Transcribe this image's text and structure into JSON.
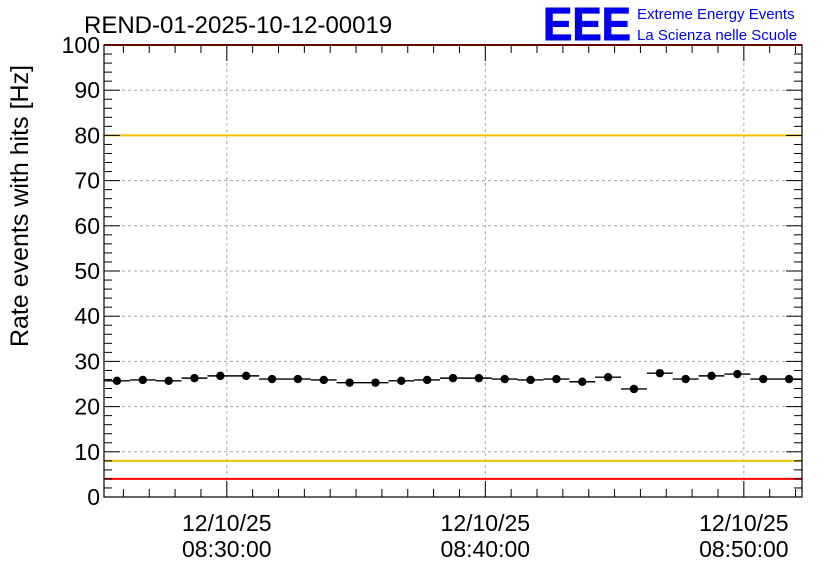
{
  "chart_data": {
    "type": "scatter",
    "title": "REND-01-2025-10-12-00019",
    "ylabel": "Rate events with hits [Hz]",
    "xlabel": "",
    "ylim": [
      0,
      100
    ],
    "yticks": [
      0,
      10,
      20,
      30,
      40,
      50,
      60,
      70,
      80,
      90,
      100
    ],
    "grid": true,
    "x_unit": "minutes after 08:25:15",
    "xlim": [
      0,
      27.0
    ],
    "xtick_labels": [
      {
        "x": 4.75,
        "date": "12/10/25",
        "time": "08:30:00"
      },
      {
        "x": 14.75,
        "date": "12/10/25",
        "time": "08:40:00"
      },
      {
        "x": 24.75,
        "date": "12/10/25",
        "time": "08:50:00"
      }
    ],
    "bin_width_minutes": 1,
    "series": [
      {
        "name": "rate",
        "x": [
          0.5,
          1.5,
          2.5,
          3.5,
          4.5,
          5.5,
          6.5,
          7.5,
          8.5,
          9.5,
          10.5,
          11.5,
          12.5,
          13.5,
          14.5,
          15.5,
          16.5,
          17.5,
          18.5,
          19.5,
          20.5,
          21.5,
          22.5,
          23.5,
          24.5,
          25.5,
          26.5
        ],
        "values": [
          25.7,
          25.9,
          25.7,
          26.3,
          26.8,
          26.8,
          26.1,
          26.1,
          25.9,
          25.3,
          25.3,
          25.7,
          25.9,
          26.3,
          26.3,
          26.1,
          25.9,
          26.1,
          25.5,
          26.5,
          23.9,
          27.4,
          26.1,
          26.8,
          27.2,
          26.1,
          26.1
        ]
      }
    ],
    "reference_lines": [
      {
        "name": "upper-red-line",
        "y": 100,
        "color": "#ff0000"
      },
      {
        "name": "upper-yellow-line",
        "y": 80,
        "color": "#f2c200"
      },
      {
        "name": "lower-yellow-line",
        "y": 8,
        "color": "#f2c200"
      },
      {
        "name": "lower-red-line",
        "y": 4,
        "color": "#ff0000"
      }
    ]
  },
  "logo": {
    "mark": "EEE",
    "line1": "Extreme Energy Events",
    "line2": "La Scienza nelle Scuole",
    "color": "#0000ee"
  }
}
